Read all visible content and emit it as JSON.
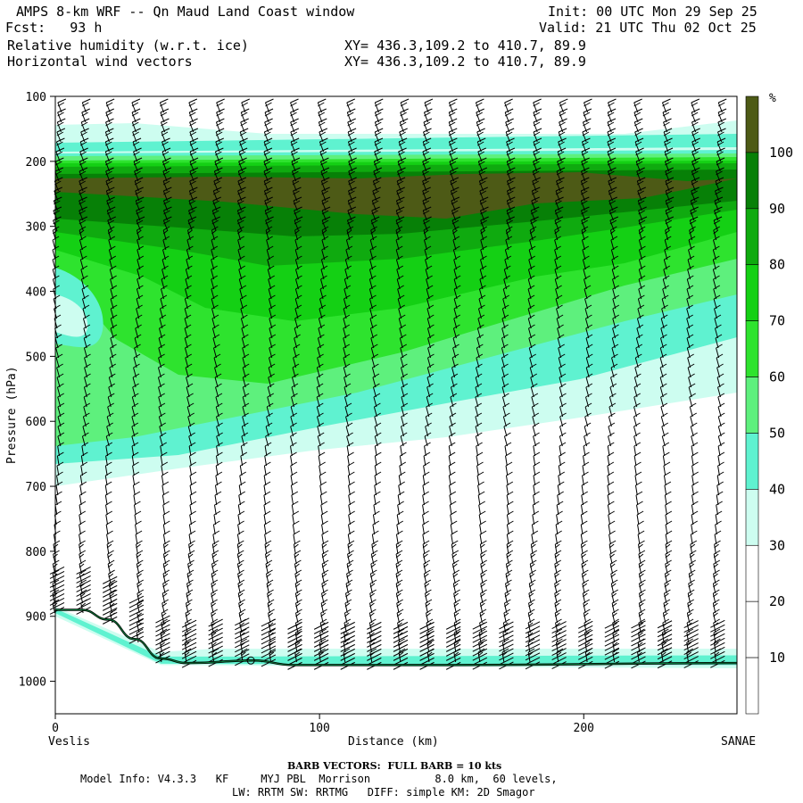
{
  "header": {
    "title": "AMPS 8-km WRF -- Qn Maud Land Coast window",
    "fcst": "Fcst:   93 h",
    "field1": "Relative humidity (w.r.t. ice)",
    "field2": "Horizontal wind vectors",
    "init": "Init: 00 UTC Mon 29 Sep 25",
    "valid": "Valid: 21 UTC Thu 02 Oct 25",
    "xy1": "XY= 436.3,109.2 to 410.7, 89.9",
    "xy2": "XY= 436.3,109.2 to 410.7, 89.9"
  },
  "footer": {
    "left_endpoint": "Veslis",
    "right_endpoint": "SANAE",
    "barb_note": "BARB VECTORS:  FULL BARB = 10 kts",
    "model_info": "Model Info: V4.3.3   KF     MYJ PBL  Morrison          8.0 km,  60 levels,",
    "model_info2": "LW: RRTM SW: RRTMG   DIFF: simple KM: 2D Smagor"
  },
  "colors": {
    "c20_30": "#cdfdf0",
    "c30_40": "#9afbe0",
    "c40_50": "#5ff2d0",
    "c50_60": "#5ef07d",
    "c60_70": "#2ee32e",
    "c70_80": "#14d014",
    "c80_90": "#0faa0f",
    "c90_100": "#078007",
    "c100": "#4d5a16"
  },
  "chart_data": {
    "type": "heatmap",
    "xlabel": "Distance (km)",
    "ylabel": "Pressure (hPa)",
    "xlim": [
      0,
      258
    ],
    "ylim": [
      1050,
      100
    ],
    "x_ticks": [
      0,
      100,
      200
    ],
    "y_ticks": [
      100,
      200,
      300,
      400,
      500,
      600,
      700,
      800,
      900,
      1000
    ],
    "colorbar": {
      "unit": "%",
      "tick_labels": [
        10,
        20,
        30,
        40,
        50,
        60,
        70,
        80,
        90,
        100
      ],
      "bands": [
        {
          "from": 0,
          "to": 10,
          "color": "#ffffff"
        },
        {
          "from": 10,
          "to": 20,
          "color": "#ffffff"
        },
        {
          "from": 20,
          "to": 30,
          "color": "#ffffff"
        },
        {
          "from": 30,
          "to": 40,
          "color": "#cdfdf0"
        },
        {
          "from": 40,
          "to": 50,
          "color": "#5ff2d0"
        },
        {
          "from": 50,
          "to": 60,
          "color": "#5ef07d"
        },
        {
          "from": 60,
          "to": 70,
          "color": "#2ee32e"
        },
        {
          "from": 70,
          "to": 80,
          "color": "#14d014"
        },
        {
          "from": 80,
          "to": 90,
          "color": "#0faa0f"
        },
        {
          "from": 90,
          "to": 100,
          "color": "#078007"
        },
        {
          "from": 100,
          "to": 110,
          "color": "#4d5a16"
        }
      ]
    },
    "terrain_surface_hpa": [
      {
        "x": 0,
        "p": 890
      },
      {
        "x": 10,
        "p": 890
      },
      {
        "x": 20,
        "p": 905
      },
      {
        "x": 30,
        "p": 935
      },
      {
        "x": 40,
        "p": 965
      },
      {
        "x": 50,
        "p": 972
      },
      {
        "x": 75,
        "p": 968
      },
      {
        "x": 90,
        "p": 975
      },
      {
        "x": 150,
        "p": 975
      },
      {
        "x": 258,
        "p": 972
      }
    ],
    "rh_regions": [
      {
        "band": "30-40",
        "description": "moist upper band",
        "p_top": 170,
        "p_bottom": 700
      },
      {
        "band": "90-100",
        "p_top": 195,
        "p_bottom": 300
      },
      {
        "band": "100+",
        "p_top": 215,
        "p_bottom": 260
      }
    ],
    "wind_barb_columns_km": [
      0,
      10,
      20,
      30,
      40,
      50,
      60,
      70,
      80,
      90,
      100,
      110,
      120,
      130,
      140,
      150,
      160,
      170,
      180,
      190,
      200,
      210,
      220,
      230,
      240,
      250
    ]
  }
}
